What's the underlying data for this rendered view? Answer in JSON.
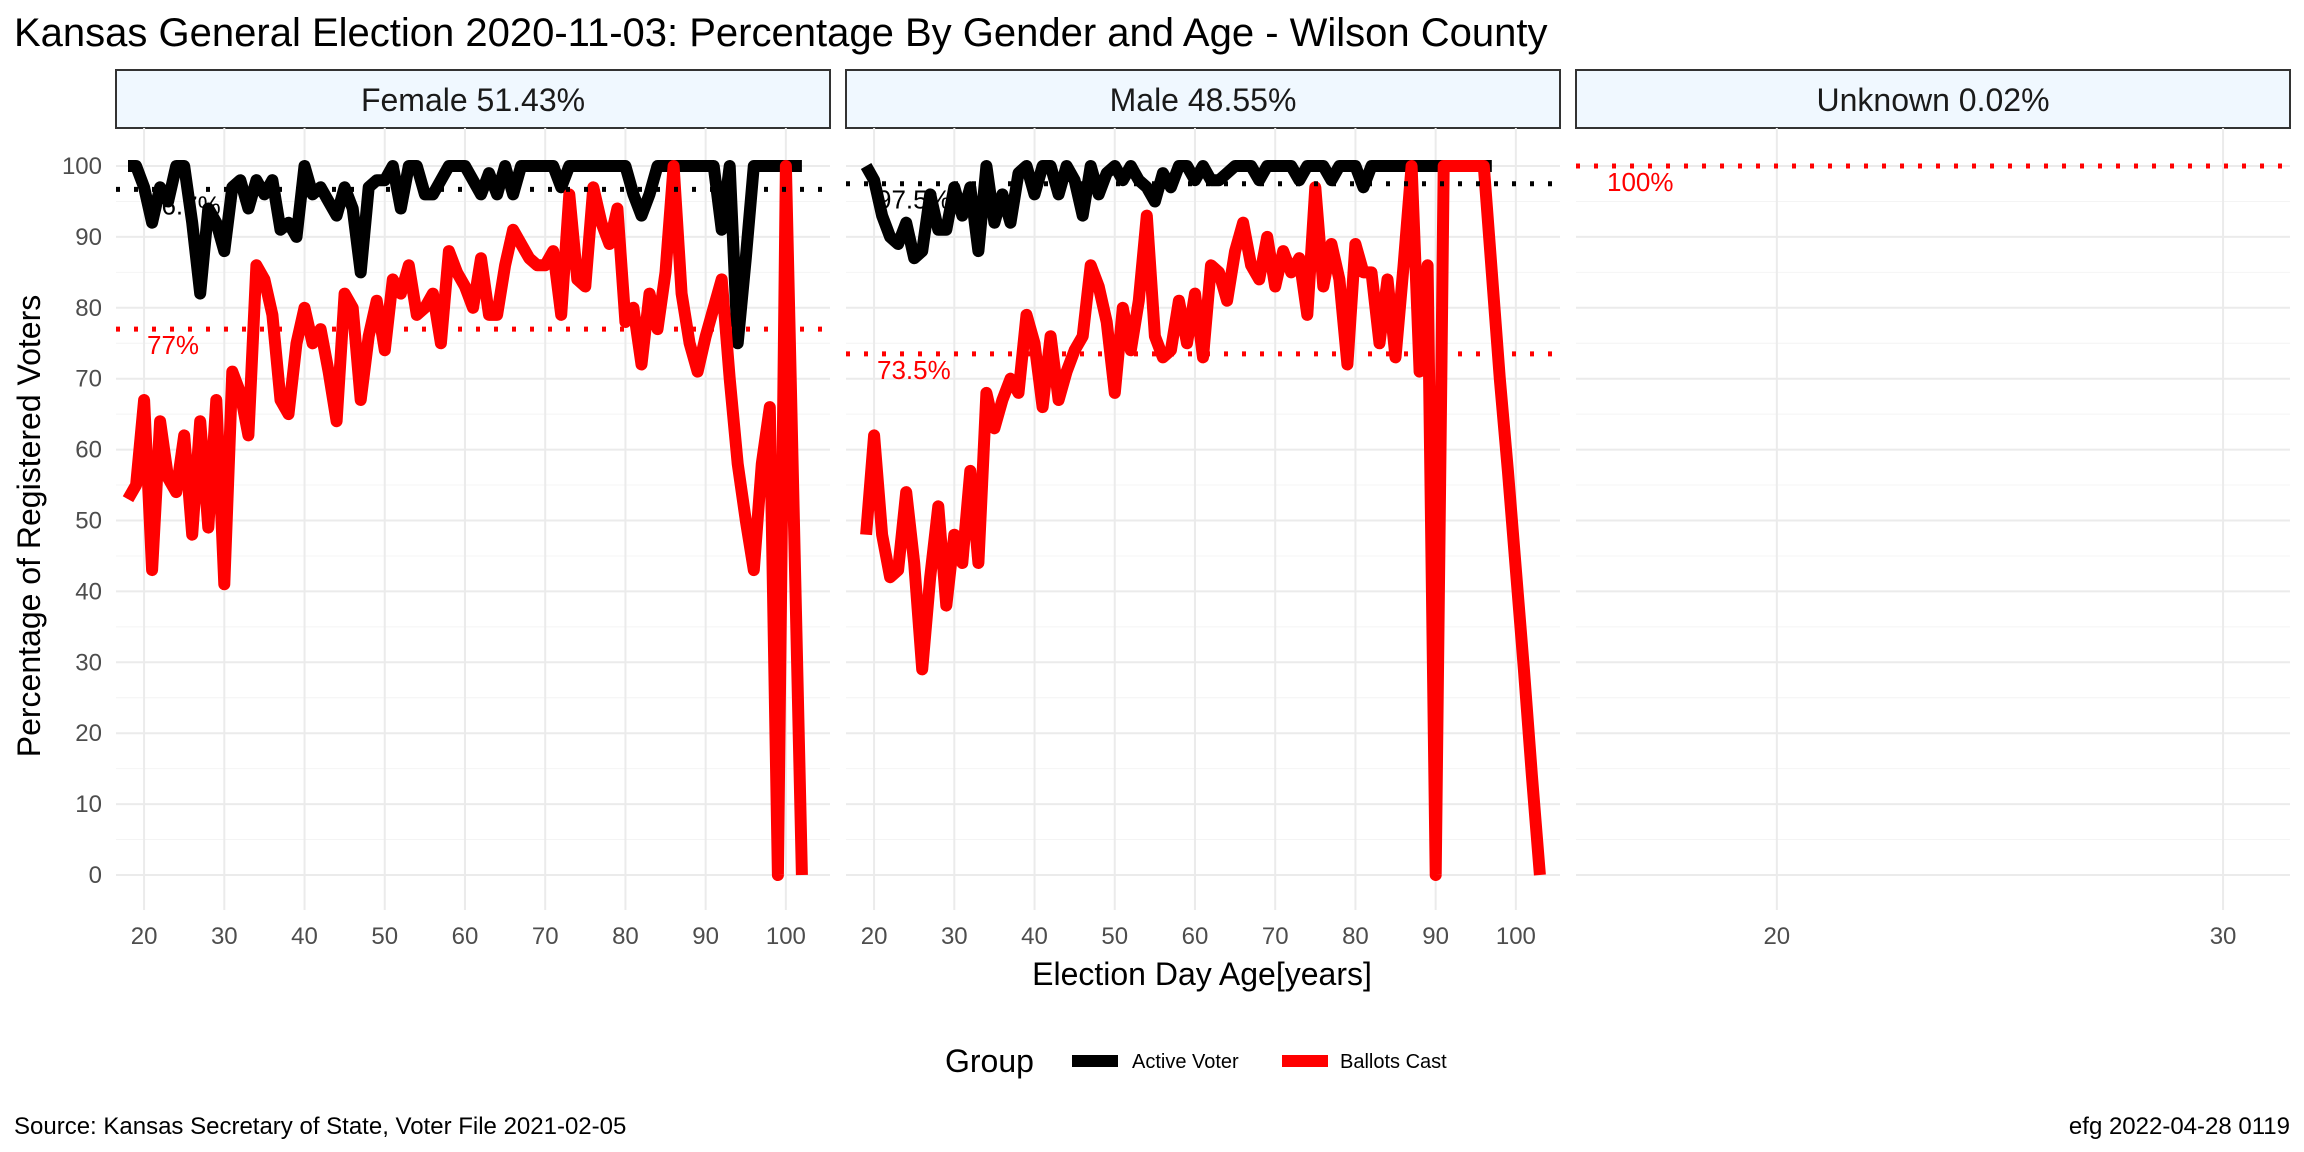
{
  "title": "Kansas General Election 2020-11-03:  Percentage By Gender and Age - Wilson County",
  "caption_left": "Source:  Kansas Secretary of State, Voter File  2021-02-05",
  "caption_right": "efg 2022-04-28 0119",
  "colors": {
    "active_voter": "#000000",
    "ballots_cast": "#ff0000",
    "strip_fill": "#f0f8ff",
    "grid": "#ebebeb"
  },
  "chart_data": {
    "type": "line",
    "xlabel": "Election Day Age[years]",
    "ylabel": "Percentage of Registered Voters",
    "ylim": [
      0,
      100
    ],
    "yticks": [
      0,
      10,
      20,
      30,
      40,
      50,
      60,
      70,
      80,
      90,
      100
    ],
    "grid": true,
    "legend": {
      "title": "Group",
      "position": "bottom",
      "entries": [
        "Active Voter",
        "Ballots Cast"
      ]
    },
    "panels": [
      {
        "strip": "Female 51.43%",
        "xlim": [
          16.5,
          105.5
        ],
        "xticks": [
          20,
          30,
          40,
          50,
          60,
          70,
          80,
          90,
          100
        ],
        "ref_lines": [
          {
            "series": "Active Voter",
            "value": 96.7,
            "label": "96.7%"
          },
          {
            "series": "Ballots Cast",
            "value": 77,
            "label": "77%"
          }
        ],
        "series": [
          {
            "name": "Active Voter",
            "x": [
              18,
              19,
              20,
              21,
              22,
              23,
              24,
              25,
              26,
              27,
              28,
              29,
              30,
              31,
              32,
              33,
              34,
              35,
              36,
              37,
              38,
              39,
              40,
              41,
              42,
              43,
              44,
              45,
              46,
              47,
              48,
              49,
              50,
              51,
              52,
              53,
              54,
              55,
              56,
              57,
              58,
              59,
              60,
              61,
              62,
              63,
              64,
              65,
              66,
              67,
              68,
              69,
              70,
              71,
              72,
              73,
              74,
              75,
              76,
              77,
              78,
              79,
              80,
              81,
              82,
              83,
              84,
              85,
              86,
              87,
              88,
              89,
              90,
              91,
              92,
              93,
              94,
              95,
              96,
              97,
              98,
              99,
              100,
              101,
              102
            ],
            "y": [
              100,
              100,
              97,
              92,
              97,
              95,
              100,
              100,
              92,
              82,
              94,
              92,
              88,
              97,
              98,
              94,
              98,
              96,
              98,
              91,
              92,
              90,
              100,
              96,
              97,
              95,
              93,
              97,
              94,
              85,
              97,
              98,
              98,
              100,
              94,
              100,
              100,
              96,
              96,
              98,
              100,
              100,
              100,
              98,
              96,
              99,
              96,
              100,
              96,
              100,
              100,
              100,
              100,
              100,
              97,
              100,
              100,
              100,
              100,
              100,
              100,
              100,
              100,
              96,
              93,
              96,
              100,
              100,
              100,
              100,
              100,
              100,
              100,
              100,
              91,
              100,
              75,
              87,
              100,
              100,
              100,
              100,
              100,
              100,
              100
            ]
          },
          {
            "name": "Ballots Cast",
            "x": [
              18,
              19,
              20,
              21,
              22,
              23,
              24,
              25,
              26,
              27,
              28,
              29,
              30,
              31,
              32,
              33,
              34,
              35,
              36,
              37,
              38,
              39,
              40,
              41,
              42,
              43,
              44,
              45,
              46,
              47,
              48,
              49,
              50,
              51,
              52,
              53,
              54,
              55,
              56,
              57,
              58,
              59,
              60,
              61,
              62,
              63,
              64,
              65,
              66,
              67,
              68,
              69,
              70,
              71,
              72,
              73,
              74,
              75,
              76,
              77,
              78,
              79,
              80,
              81,
              82,
              83,
              84,
              85,
              86,
              87,
              88,
              89,
              90,
              91,
              92,
              93,
              94,
              95,
              96,
              97,
              98,
              99,
              100,
              101,
              102
            ],
            "y": [
              53,
              55,
              67,
              43,
              64,
              56,
              54,
              62,
              48,
              64,
              49,
              67,
              41,
              71,
              68,
              62,
              86,
              84,
              79,
              67,
              65,
              75,
              80,
              75,
              77,
              71,
              64,
              82,
              80,
              67,
              76,
              81,
              74,
              84,
              82,
              86,
              79,
              80,
              82,
              75,
              88,
              85,
              83,
              80,
              87,
              79,
              79,
              86,
              91,
              89,
              87,
              86,
              86,
              88,
              79,
              96,
              84,
              83,
              97,
              92,
              89,
              94,
              78,
              80,
              72,
              82,
              77,
              85,
              100,
              82,
              75,
              71,
              76,
              80,
              84,
              70,
              58,
              50,
              43,
              58,
              66,
              0,
              100,
              50,
              0
            ]
          }
        ]
      },
      {
        "strip": "Male 48.55%",
        "xlim": [
          16.5,
          105.5
        ],
        "xticks": [
          20,
          30,
          40,
          50,
          60,
          70,
          80,
          90,
          100
        ],
        "ref_lines": [
          {
            "series": "Active Voter",
            "value": 97.5,
            "label": "97.5%"
          },
          {
            "series": "Ballots Cast",
            "value": 73.5,
            "label": "73.5%"
          }
        ],
        "series": [
          {
            "name": "Active Voter",
            "x": [
              19,
              20,
              21,
              22,
              23,
              24,
              25,
              26,
              27,
              28,
              29,
              30,
              31,
              32,
              33,
              34,
              35,
              36,
              37,
              38,
              39,
              40,
              41,
              42,
              43,
              44,
              45,
              46,
              47,
              48,
              49,
              50,
              51,
              52,
              53,
              54,
              55,
              56,
              57,
              58,
              59,
              60,
              61,
              62,
              63,
              64,
              65,
              66,
              67,
              68,
              69,
              70,
              71,
              72,
              73,
              74,
              75,
              76,
              77,
              78,
              79,
              80,
              81,
              82,
              83,
              84,
              85,
              86,
              87,
              88,
              89,
              90,
              91,
              92,
              93,
              94,
              95,
              96,
              97
            ],
            "y": [
              100,
              98,
              93,
              90,
              89,
              92,
              87,
              88,
              96,
              91,
              91,
              97,
              93,
              97,
              88,
              100,
              92,
              96,
              92,
              99,
              100,
              96,
              100,
              100,
              96,
              100,
              98,
              93,
              100,
              96,
              99,
              100,
              98,
              100,
              98,
              97,
              95,
              99,
              97,
              100,
              100,
              98,
              100,
              98,
              98,
              99,
              100,
              100,
              100,
              98,
              100,
              100,
              100,
              100,
              98,
              100,
              100,
              100,
              98,
              100,
              100,
              100,
              97,
              100,
              100,
              100,
              100,
              100,
              100,
              100,
              100,
              100,
              100,
              100,
              100,
              100,
              100,
              100,
              100
            ]
          },
          {
            "name": "Ballots Cast",
            "x": [
              19,
              20,
              21,
              22,
              23,
              24,
              25,
              26,
              27,
              28,
              29,
              30,
              31,
              32,
              33,
              34,
              35,
              36,
              37,
              38,
              39,
              40,
              41,
              42,
              43,
              44,
              45,
              46,
              47,
              48,
              49,
              50,
              51,
              52,
              53,
              54,
              55,
              56,
              57,
              58,
              59,
              60,
              61,
              62,
              63,
              64,
              65,
              66,
              67,
              68,
              69,
              70,
              71,
              72,
              73,
              74,
              75,
              76,
              77,
              78,
              79,
              80,
              81,
              82,
              83,
              84,
              85,
              86,
              87,
              88,
              89,
              90,
              91,
              92,
              93,
              94,
              95,
              96,
              97,
              98,
              99,
              100,
              101,
              102,
              103
            ],
            "y": [
              48,
              62,
              48,
              42,
              43,
              54,
              44,
              29,
              42,
              52,
              38,
              48,
              44,
              57,
              44,
              68,
              63,
              67,
              70,
              68,
              79,
              75,
              66,
              76,
              67,
              71,
              74,
              76,
              86,
              83,
              78,
              68,
              80,
              74,
              81,
              93,
              76,
              73,
              74,
              81,
              75,
              82,
              73,
              86,
              85,
              81,
              88,
              92,
              86,
              84,
              90,
              83,
              88,
              85,
              87,
              79,
              97,
              83,
              89,
              84,
              72,
              89,
              85,
              85,
              75,
              84,
              73,
              86,
              100,
              71,
              86,
              0,
              100,
              100,
              100,
              100,
              100,
              100,
              85,
              70,
              57,
              43,
              29,
              14,
              0
            ]
          }
        ]
      },
      {
        "strip": "Unknown 0.02%",
        "xlim": [
          15.5,
          31.5
        ],
        "xticks": [
          20,
          30
        ],
        "ref_lines": [
          {
            "series": "Ballots Cast",
            "value": 100,
            "label": "100%"
          }
        ],
        "series": []
      }
    ]
  }
}
